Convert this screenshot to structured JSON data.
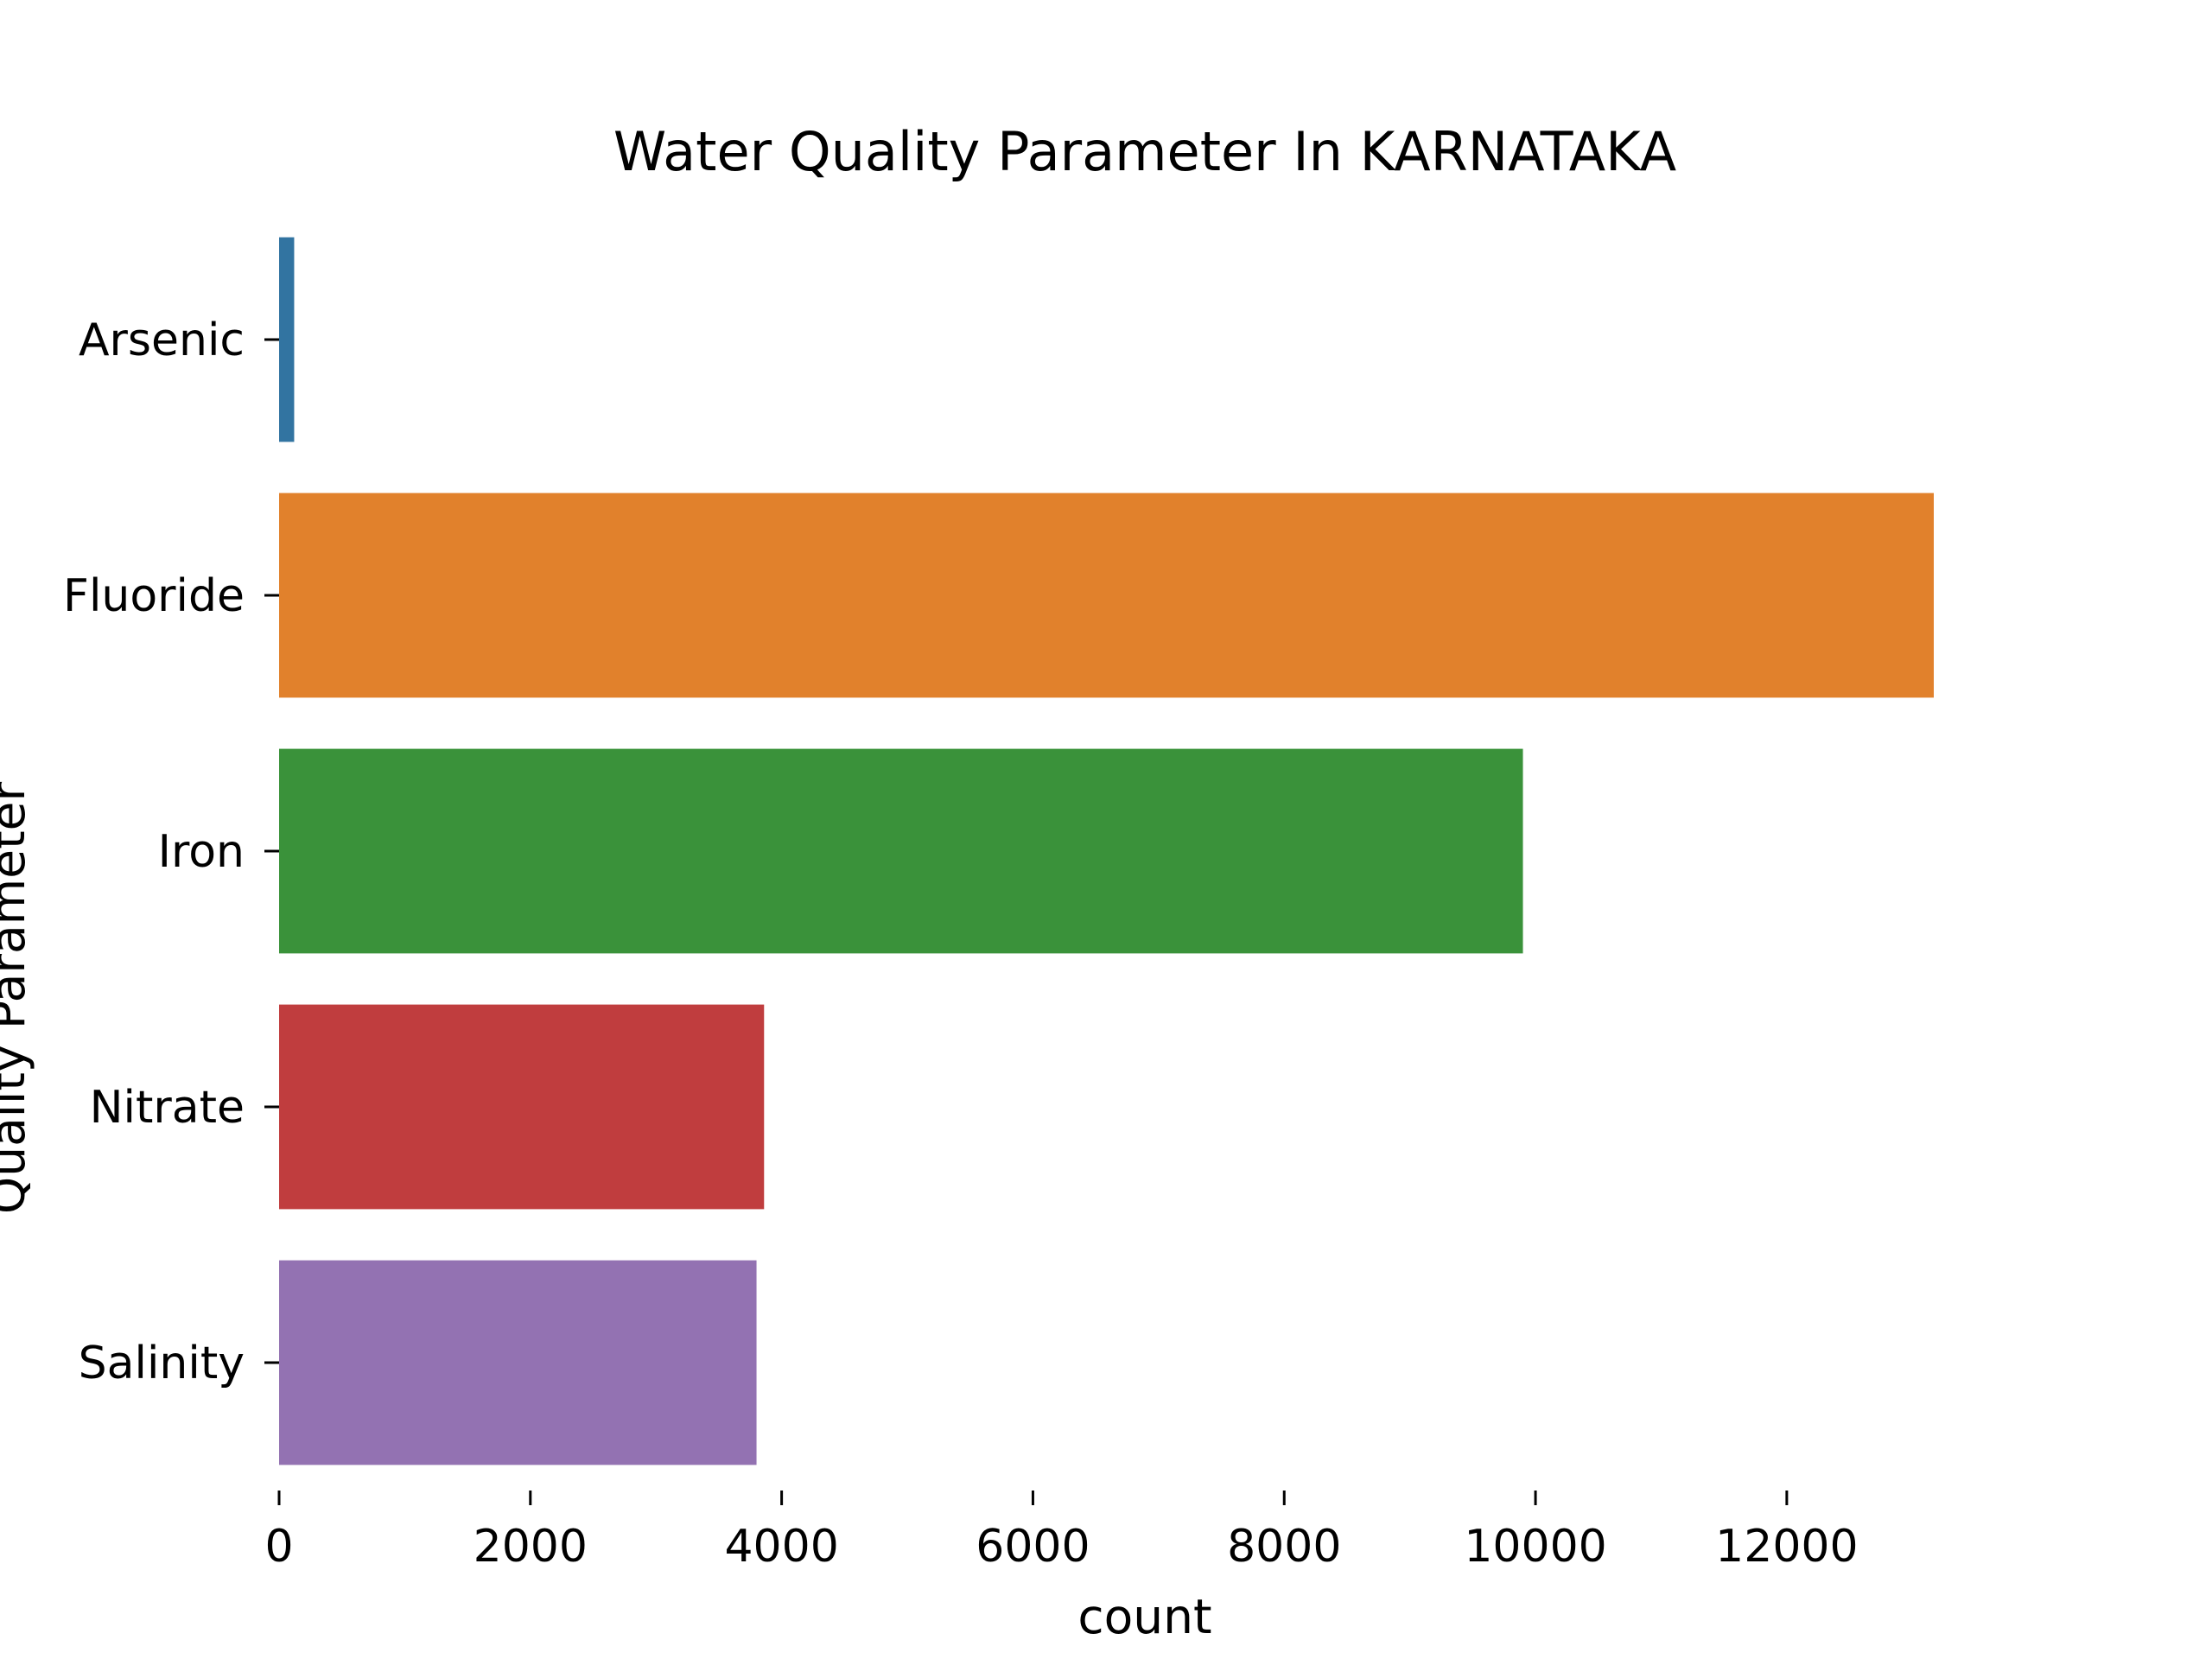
{
  "chart_data": {
    "type": "bar",
    "orientation": "horizontal",
    "title": "Water Quality Parameter In KARNATAKA",
    "xlabel": "count",
    "ylabel": "Quality Parameter",
    "categories": [
      "Arsenic",
      "Fluoride",
      "Iron",
      "Nitrate",
      "Salinity"
    ],
    "values": [
      120,
      13170,
      9900,
      3860,
      3800
    ],
    "colors": [
      "#3274a1",
      "#e1812c",
      "#3a923a",
      "#c03d3e",
      "#9372b2"
    ],
    "xlim": [
      0,
      13170
    ],
    "xticks": [
      0,
      2000,
      4000,
      6000,
      8000,
      10000,
      12000
    ],
    "grid": false,
    "legend": "none"
  }
}
